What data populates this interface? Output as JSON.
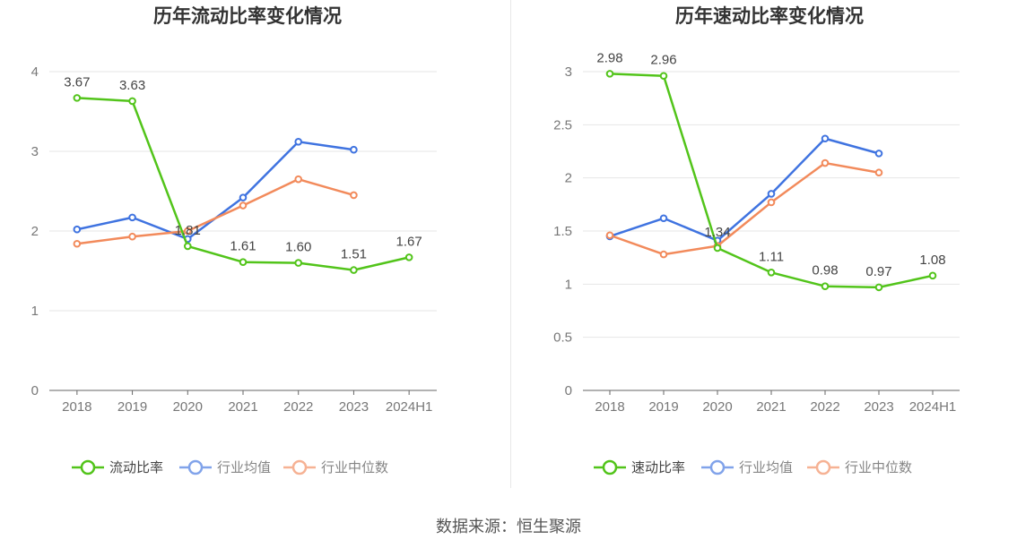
{
  "source_label": "数据来源：恒生聚源",
  "colors": {
    "main": "#52c41a",
    "avg": "#3f73e0",
    "median": "#f28a5b"
  },
  "chart_data": [
    {
      "type": "line",
      "title": "历年流动比率变化情况",
      "categories": [
        "2018",
        "2019",
        "2020",
        "2021",
        "2022",
        "2023",
        "2024H1"
      ],
      "ylim": [
        0,
        4
      ],
      "yticks": [
        0,
        1,
        2,
        3,
        4
      ],
      "ytick_labels": [
        "0",
        "1",
        "2",
        "3",
        "4"
      ],
      "grid": true,
      "legend_position": "bottom",
      "series": [
        {
          "name": "流动比率",
          "values": [
            3.67,
            3.63,
            1.81,
            1.61,
            1.6,
            1.51,
            1.67
          ],
          "labels": [
            "3.67",
            "3.63",
            "1.81",
            "1.61",
            "1.60",
            "1.51",
            "1.67"
          ]
        },
        {
          "name": "行业均值",
          "values": [
            2.02,
            2.17,
            1.9,
            2.42,
            3.12,
            3.02,
            null
          ]
        },
        {
          "name": "行业中位数",
          "values": [
            1.84,
            1.93,
            2.0,
            2.32,
            2.65,
            2.45,
            null
          ]
        }
      ]
    },
    {
      "type": "line",
      "title": "历年速动比率变化情况",
      "categories": [
        "2018",
        "2019",
        "2020",
        "2021",
        "2022",
        "2023",
        "2024H1"
      ],
      "ylim": [
        0,
        3
      ],
      "yticks": [
        0,
        0.5,
        1,
        1.5,
        2,
        2.5,
        3
      ],
      "ytick_labels": [
        "0",
        "0.5",
        "1",
        "1.5",
        "2",
        "2.5",
        "3"
      ],
      "grid": true,
      "legend_position": "bottom",
      "series": [
        {
          "name": "速动比率",
          "values": [
            2.98,
            2.96,
            1.34,
            1.11,
            0.98,
            0.97,
            1.08
          ],
          "labels": [
            "2.98",
            "2.96",
            "1.34",
            "1.11",
            "0.98",
            "0.97",
            "1.08"
          ]
        },
        {
          "name": "行业均值",
          "values": [
            1.45,
            1.62,
            1.41,
            1.85,
            2.37,
            2.23,
            null
          ]
        },
        {
          "name": "行业中位数",
          "values": [
            1.46,
            1.28,
            1.36,
            1.77,
            2.14,
            2.05,
            null
          ]
        }
      ]
    }
  ]
}
